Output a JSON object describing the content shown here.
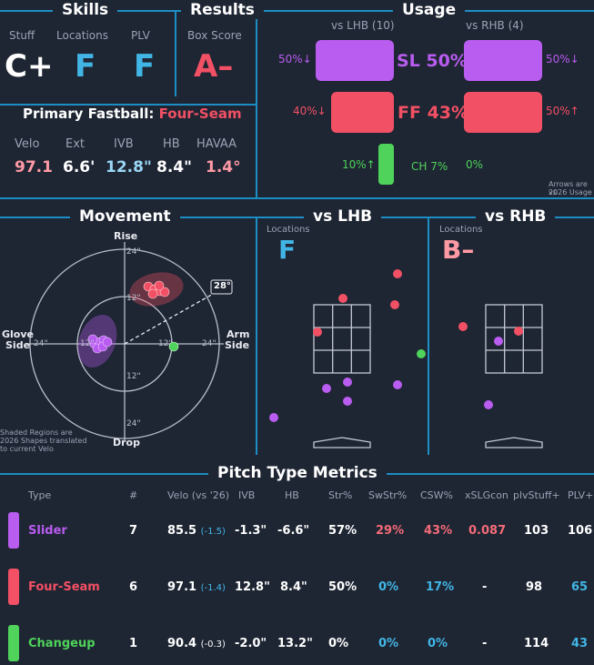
{
  "skills": {
    "title": "Skills",
    "stuff_label": "Stuff",
    "stuff_grade": "C+",
    "locations_label": "Locations",
    "locations_grade": "F",
    "plv_label": "PLV",
    "plv_grade": "F"
  },
  "results": {
    "title": "Results",
    "box_label": "Box Score",
    "box_grade": "A–"
  },
  "fastball": {
    "title": "Primary Fastball:",
    "pitch": "Four-Seam",
    "stats": [
      {
        "label": "Velo",
        "value": "97.1"
      },
      {
        "label": "Ext",
        "value": "6.6'"
      },
      {
        "label": "IVB",
        "value": "12.8\""
      },
      {
        "label": "HB",
        "value": "8.4\""
      },
      {
        "label": "HAVAA",
        "value": "1.4°"
      }
    ]
  },
  "usage": {
    "title": "Usage",
    "lhb_header": "vs LHB (10)",
    "rhb_header": "vs RHB (4)",
    "rows": [
      {
        "pitch": "SL 50%",
        "left": "50%↓",
        "right": "50%↓",
        "lhb": 50,
        "rhb": 50,
        "color": "#b95cf0"
      },
      {
        "pitch": "FF 43%",
        "left": "40%↓",
        "right": "50%↑",
        "lhb": 40,
        "rhb": 50,
        "color": "#f25064"
      },
      {
        "pitch": "CH 7%",
        "left": "10%↑",
        "right": "0%",
        "lhb": 10,
        "rhb": 0,
        "color": "#4fd35a"
      }
    ],
    "note1": "Arrows are vs",
    "note2": "2026 Usage"
  },
  "movement": {
    "title": "Movement",
    "rise": "Rise",
    "drop": "Drop",
    "glove1": "Glove",
    "glove2": "Side",
    "arm1": "Arm",
    "arm2": "Side",
    "tick24": "24\"",
    "tick12": "12\"",
    "angle": "28°",
    "note1": "Shaded Regions are",
    "note2": "2026 Shapes translated",
    "note3": "to current Velo"
  },
  "vs_lhb": {
    "title": "vs LHB",
    "locations_label": "Locations",
    "grade": "F"
  },
  "vs_rhb": {
    "title": "vs RHB",
    "locations_label": "Locations",
    "grade": "B–"
  },
  "metrics": {
    "title": "Pitch Type Metrics",
    "headers": [
      "Type",
      "#",
      "Velo (vs '26)",
      "IVB",
      "HB",
      "Str%",
      "SwStr%",
      "CSW%",
      "xSLGcon",
      "plvStuff+",
      "PLV+"
    ],
    "rows": [
      {
        "type": "Slider",
        "count": "7",
        "velo": "85.5",
        "velo_diff": "(-1.5)",
        "ivb": "-1.3\"",
        "hb": "-6.6\"",
        "str": "57%",
        "swstr": "29%",
        "csw": "43%",
        "xslg": "0.087",
        "stuff": "103",
        "plv": "106"
      },
      {
        "type": "Four-Seam",
        "count": "6",
        "velo": "97.1",
        "velo_diff": "(-1.4)",
        "ivb": "12.8\"",
        "hb": "8.4\"",
        "str": "50%",
        "swstr": "0%",
        "csw": "17%",
        "xslg": "-",
        "stuff": "98",
        "plv": "65"
      },
      {
        "type": "Changeup",
        "count": "1",
        "velo": "90.4",
        "velo_diff": "(-0.3)",
        "ivb": "-2.0\"",
        "hb": "13.2\"",
        "str": "0%",
        "swstr": "0%",
        "csw": "0%",
        "xslg": "-",
        "stuff": "114",
        "plv": "43"
      }
    ]
  },
  "colors": {
    "slider": "#b95cf0",
    "fourseam": "#f25064",
    "changeup": "#4fd35a",
    "grade_f": "#41b6e6",
    "grade_a": "#f25064",
    "accent": "#1d8ec4"
  }
}
